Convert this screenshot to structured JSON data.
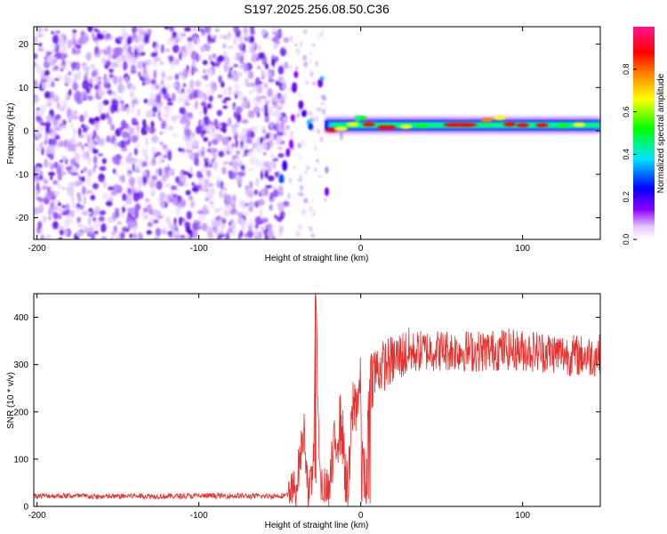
{
  "title": "S197.2025.256.08.50.C36",
  "chart_data": [
    {
      "type": "heatmap",
      "xlabel": "Height of straight line (km)",
      "ylabel": "Frequency (Hz)",
      "xlim": [
        -202,
        148
      ],
      "ylim": [
        -25,
        24
      ],
      "xticks": [
        -200,
        -100,
        0,
        100
      ],
      "xtick_labels": [
        "-200",
        "-100",
        "0",
        "100"
      ],
      "yticks": [
        -20,
        -10,
        0,
        10,
        20
      ],
      "ytick_labels": [
        "-20",
        "-10",
        "0",
        "10",
        "20"
      ],
      "colorbar": {
        "label": "Normalized spectral amplitude",
        "range": [
          0,
          1
        ],
        "ticks": [
          0.0,
          0.2,
          0.4,
          0.6,
          0.8
        ],
        "tick_labels": [
          "0.0",
          "0.2",
          "0.4",
          "0.6",
          "0.8"
        ],
        "colors": [
          "#ffffff",
          "#8b00ff",
          "#0000ff",
          "#00e5ff",
          "#00ff00",
          "#ffff00",
          "#ff8000",
          "#ff0000",
          "#ff00aa"
        ]
      },
      "regions": [
        {
          "name": "noise field",
          "x": [
            -202,
            -50
          ],
          "freq": [
            -25,
            24
          ],
          "amplitude": "0.05-0.25"
        },
        {
          "name": "diagonal streak",
          "x": [
            -50,
            -20
          ],
          "freq": [
            -12,
            12
          ],
          "amplitude": "0.1-0.4"
        },
        {
          "name": "carrier line",
          "x": [
            -22,
            148
          ],
          "freq": [
            0,
            2
          ],
          "amplitude": "0.3-0.9"
        }
      ],
      "grid": false
    },
    {
      "type": "line",
      "xlabel": "Height of straight line (km)",
      "ylabel": "SNR (10 * v/v)",
      "xlim": [
        -202,
        148
      ],
      "ylim": [
        0,
        450
      ],
      "xticks": [
        -200,
        -100,
        0,
        100
      ],
      "xtick_labels": [
        "-200",
        "-100",
        "0",
        "100"
      ],
      "yticks": [
        0,
        100,
        200,
        300,
        400
      ],
      "ytick_labels": [
        "0",
        "100",
        "200",
        "300",
        "400"
      ],
      "series": [
        {
          "name": "SNR",
          "color": "#e8302c",
          "x": [
            -202,
            -180,
            -160,
            -140,
            -120,
            -100,
            -80,
            -60,
            -45,
            -40,
            -38,
            -35,
            -32,
            -30,
            -29,
            -28,
            -25,
            -22,
            -20,
            -15,
            -12,
            -8,
            -5,
            -2,
            0,
            3,
            5,
            8,
            10,
            15,
            20,
            25,
            30,
            40,
            50,
            60,
            70,
            80,
            90,
            100,
            110,
            120,
            130,
            140,
            148
          ],
          "values": [
            20,
            20,
            18,
            20,
            19,
            20,
            20,
            19,
            21,
            40,
            90,
            160,
            20,
            60,
            130,
            450,
            40,
            90,
            20,
            150,
            180,
            10,
            210,
            230,
            250,
            20,
            270,
            280,
            290,
            300,
            310,
            320,
            325,
            330,
            330,
            330,
            328,
            330,
            332,
            330,
            328,
            325,
            320,
            318,
            320
          ]
        }
      ],
      "grid": false
    }
  ]
}
